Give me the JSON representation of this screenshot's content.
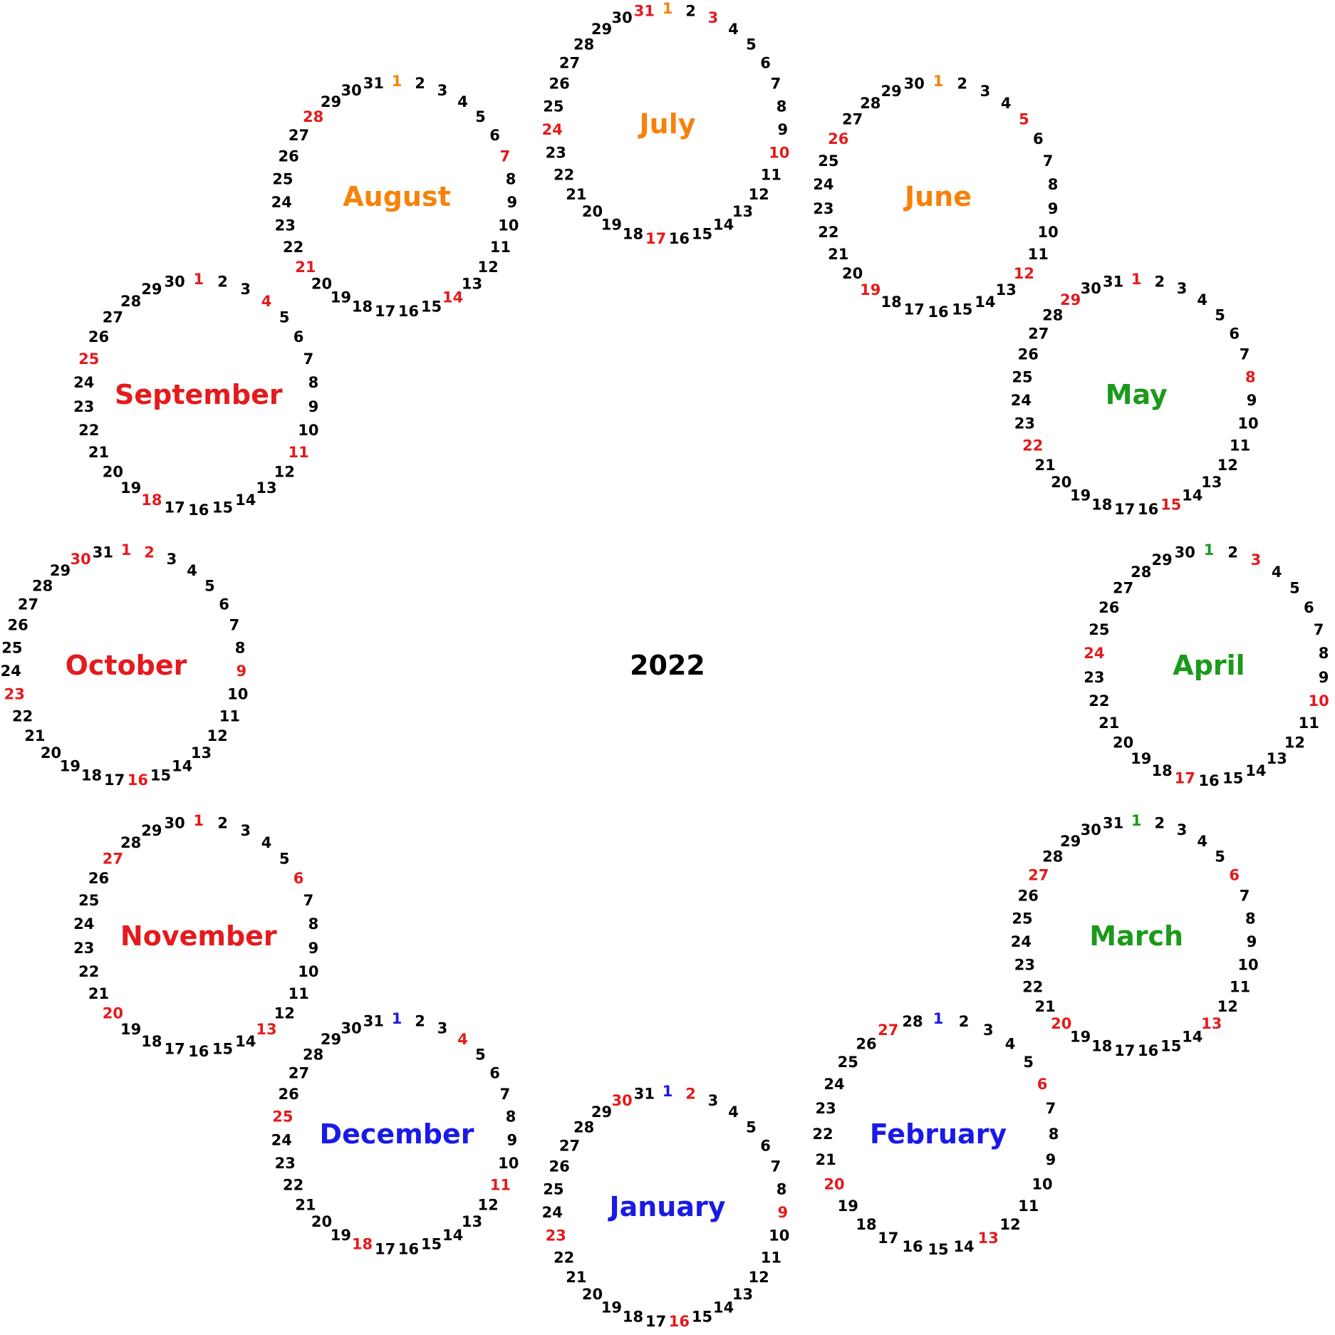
{
  "year": "2022",
  "colors": {
    "default": "#000000",
    "weekend_red": "#e41a1c",
    "winter_blue": "#1a1ae6",
    "spring_green": "#1a9a1a",
    "summer_orange": "#f7820a",
    "autumn_red": "#e41a1c"
  },
  "months": [
    {
      "name": "January",
      "days": 31,
      "color_key": "winter_blue",
      "first_color_key": "winter_blue",
      "sundays": [
        2,
        9,
        16,
        23,
        30
      ]
    },
    {
      "name": "February",
      "days": 28,
      "color_key": "winter_blue",
      "first_color_key": "winter_blue",
      "sundays": [
        6,
        13,
        20,
        27
      ]
    },
    {
      "name": "March",
      "days": 31,
      "color_key": "spring_green",
      "first_color_key": "spring_green",
      "sundays": [
        6,
        13,
        20,
        27
      ]
    },
    {
      "name": "April",
      "days": 30,
      "color_key": "spring_green",
      "first_color_key": "spring_green",
      "sundays": [
        3,
        10,
        17,
        24
      ]
    },
    {
      "name": "May",
      "days": 31,
      "color_key": "spring_green",
      "first_color_key": "weekend_red",
      "sundays": [
        1,
        8,
        15,
        22,
        29
      ]
    },
    {
      "name": "June",
      "days": 30,
      "color_key": "summer_orange",
      "first_color_key": "summer_orange",
      "sundays": [
        5,
        12,
        19,
        26
      ]
    },
    {
      "name": "July",
      "days": 31,
      "color_key": "summer_orange",
      "first_color_key": "summer_orange",
      "sundays": [
        3,
        10,
        17,
        24,
        31
      ]
    },
    {
      "name": "August",
      "days": 31,
      "color_key": "summer_orange",
      "first_color_key": "summer_orange",
      "sundays": [
        7,
        14,
        21,
        28
      ]
    },
    {
      "name": "September",
      "days": 30,
      "color_key": "autumn_red",
      "first_color_key": "weekend_red",
      "sundays": [
        4,
        11,
        18,
        25
      ]
    },
    {
      "name": "October",
      "days": 31,
      "color_key": "autumn_red",
      "first_color_key": "weekend_red",
      "sundays": [
        2,
        9,
        16,
        23,
        30
      ]
    },
    {
      "name": "November",
      "days": 30,
      "color_key": "autumn_red",
      "first_color_key": "weekend_red",
      "sundays": [
        6,
        13,
        20,
        27
      ]
    },
    {
      "name": "December",
      "days": 31,
      "color_key": "winter_blue",
      "first_color_key": "winter_blue",
      "sundays": [
        4,
        11,
        18,
        25
      ]
    }
  ]
}
